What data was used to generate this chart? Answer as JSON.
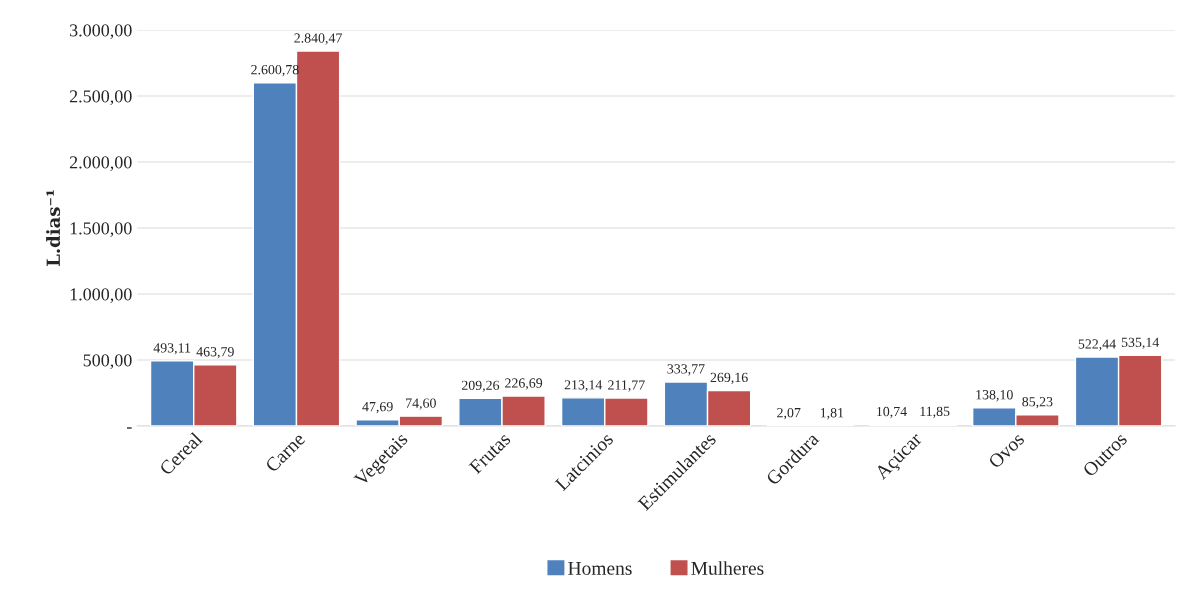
{
  "chart_data": {
    "type": "bar",
    "ylabel": "L.dias⁻¹",
    "categories": [
      "Cereal",
      "Carne",
      "Vegetais",
      "Frutas",
      "Latcinios",
      "Estimulantes",
      "Gordura",
      "Açúcar",
      "Ovos",
      "Outros"
    ],
    "series": [
      {
        "name": "Homens",
        "color": "#4f81bd",
        "values": [
          493.11,
          2600.78,
          47.69,
          209.26,
          213.14,
          333.77,
          2.07,
          10.74,
          138.1,
          522.44
        ],
        "value_labels": [
          "493,11",
          "2.600,78",
          "47,69",
          "209,26",
          "213,14",
          "333,77",
          "2,07",
          "10,74",
          "138,10",
          "522,44"
        ]
      },
      {
        "name": "Mulheres",
        "color": "#c0504d",
        "values": [
          463.79,
          2840.47,
          74.6,
          226.69,
          211.77,
          269.16,
          1.81,
          11.85,
          85.23,
          535.14
        ],
        "value_labels": [
          "463,79",
          "2.840,47",
          "74,60",
          "226,69",
          "211,77",
          "269,16",
          "1,81",
          "11,85",
          "85,23",
          "535,14"
        ]
      }
    ],
    "ylim": [
      0,
      3000
    ],
    "yticks": [
      {
        "value": 0,
        "label": "-"
      },
      {
        "value": 500,
        "label": "500,00"
      },
      {
        "value": 1000,
        "label": "1.000,00"
      },
      {
        "value": 1500,
        "label": "1.500,00"
      },
      {
        "value": 2000,
        "label": "2.000,00"
      },
      {
        "value": 2500,
        "label": "2.500,00"
      },
      {
        "value": 3000,
        "label": "3.000,00"
      }
    ],
    "grid": "y",
    "legend": "bottom"
  }
}
